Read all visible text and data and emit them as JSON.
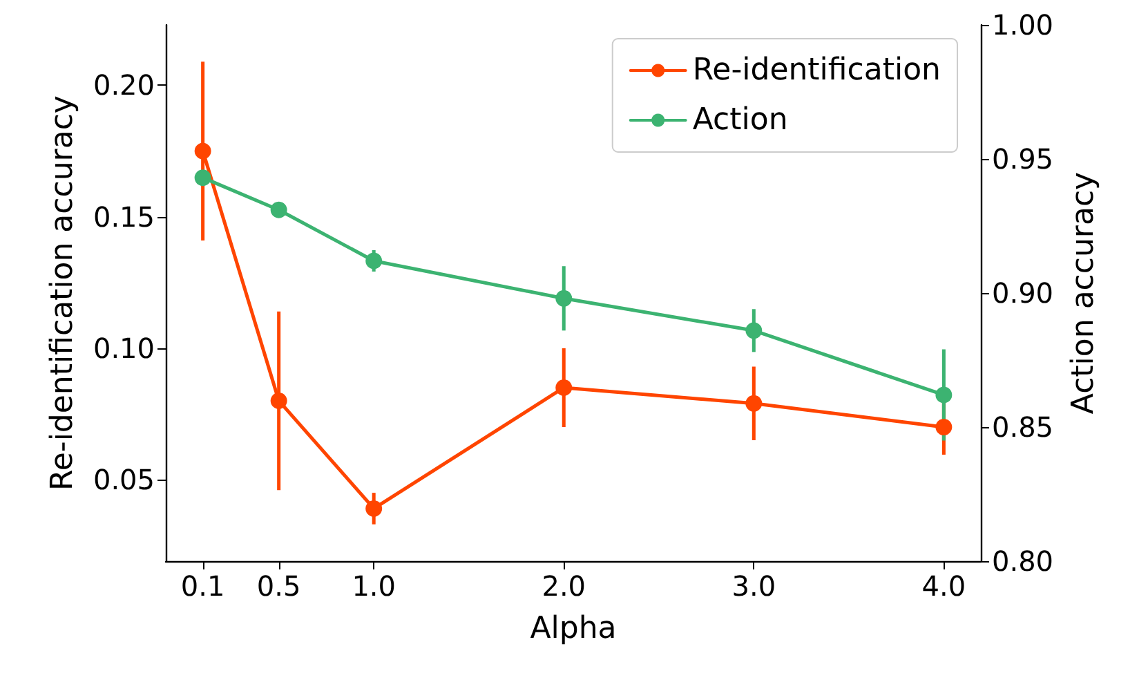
{
  "chart_data": {
    "type": "line",
    "xlabel": "Alpha",
    "ylabel": "Re-identification accuracy",
    "y2label": "Action accuracy",
    "x": [
      0.1,
      0.5,
      1.0,
      2.0,
      3.0,
      4.0
    ],
    "xlim": [
      -0.095,
      4.195
    ],
    "xticks": [
      {
        "value": 0.1,
        "label": "0.1"
      },
      {
        "value": 0.5,
        "label": "0.5"
      },
      {
        "value": 1.0,
        "label": "1.0"
      },
      {
        "value": 2.0,
        "label": "2.0"
      },
      {
        "value": 3.0,
        "label": "3.0"
      },
      {
        "value": 4.0,
        "label": "4.0"
      }
    ],
    "ylim": [
      0.019,
      0.223
    ],
    "yticks": [
      {
        "value": 0.05,
        "label": "0.05"
      },
      {
        "value": 0.1,
        "label": "0.10"
      },
      {
        "value": 0.15,
        "label": "0.15"
      },
      {
        "value": 0.2,
        "label": "0.20"
      }
    ],
    "y2lim": [
      0.8,
      1.0
    ],
    "y2ticks": [
      {
        "value": 0.8,
        "label": "0.80"
      },
      {
        "value": 0.85,
        "label": "0.85"
      },
      {
        "value": 0.9,
        "label": "0.90"
      },
      {
        "value": 0.95,
        "label": "0.95"
      },
      {
        "value": 1.0,
        "label": "1.00"
      }
    ],
    "series": [
      {
        "name": "Re-identification",
        "color": "#ff4500",
        "values": [
          0.175,
          0.08,
          0.039,
          0.085,
          0.079,
          0.07
        ],
        "errors": [
          0.034,
          0.034,
          0.006,
          0.015,
          0.014,
          0.0105
        ]
      },
      {
        "name": "Action",
        "color": "#3cb371",
        "axis": "y2",
        "values": [
          0.943,
          0.931,
          0.912,
          0.898,
          0.886,
          0.862
        ],
        "errors": [
          null,
          0.002,
          0.004,
          0.012,
          0.008,
          0.017
        ]
      }
    ],
    "marker": "circle",
    "grid": false,
    "legend": "top right"
  }
}
